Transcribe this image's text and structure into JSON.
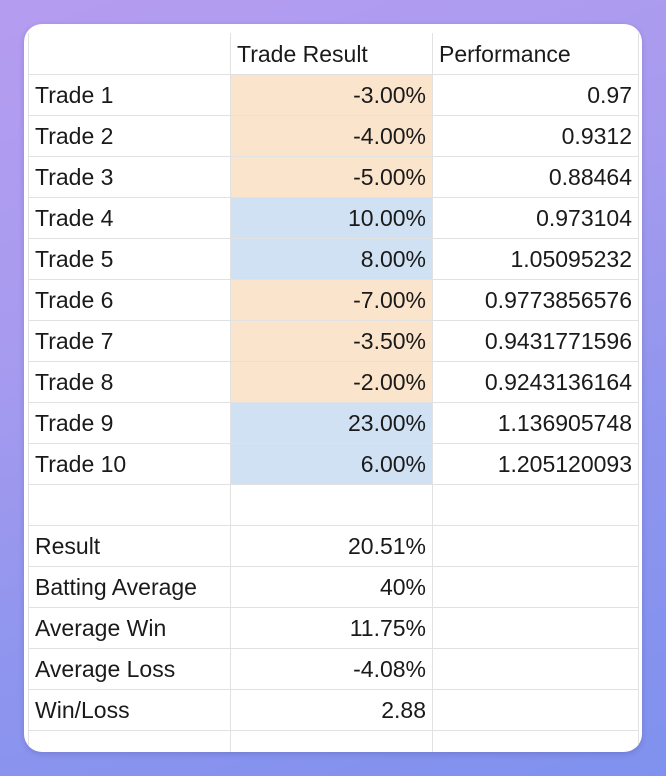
{
  "sheet": {
    "headers": [
      "",
      "Trade Result",
      "Performance"
    ],
    "trades": [
      {
        "label": "Trade 1",
        "result": "-3.00%",
        "performance": "0.97",
        "status": "loss"
      },
      {
        "label": "Trade 2",
        "result": "-4.00%",
        "performance": "0.9312",
        "status": "loss"
      },
      {
        "label": "Trade 3",
        "result": "-5.00%",
        "performance": "0.88464",
        "status": "loss"
      },
      {
        "label": "Trade 4",
        "result": "10.00%",
        "performance": "0.973104",
        "status": "win"
      },
      {
        "label": "Trade 5",
        "result": "8.00%",
        "performance": "1.05095232",
        "status": "win"
      },
      {
        "label": "Trade 6",
        "result": "-7.00%",
        "performance": "0.9773856576",
        "status": "loss"
      },
      {
        "label": "Trade 7",
        "result": "-3.50%",
        "performance": "0.9431771596",
        "status": "loss"
      },
      {
        "label": "Trade 8",
        "result": "-2.00%",
        "performance": "0.9243136164",
        "status": "loss"
      },
      {
        "label": "Trade 9",
        "result": "23.00%",
        "performance": "1.136905748",
        "status": "win"
      },
      {
        "label": "Trade 10",
        "result": "6.00%",
        "performance": "1.205120093",
        "status": "win"
      }
    ],
    "summary": [
      {
        "label": "Result",
        "value": "20.51%"
      },
      {
        "label": "Batting Average",
        "value": "40%"
      },
      {
        "label": "Average Win",
        "value": "11.75%"
      },
      {
        "label": "Average Loss",
        "value": "-4.08%"
      },
      {
        "label": "Win/Loss",
        "value": "2.88"
      }
    ]
  },
  "colors": {
    "loss_fill": "#fbe4cc",
    "win_fill": "#d0e1f4",
    "background_top": "#b59cf0",
    "background_bottom": "#7f91ee"
  }
}
